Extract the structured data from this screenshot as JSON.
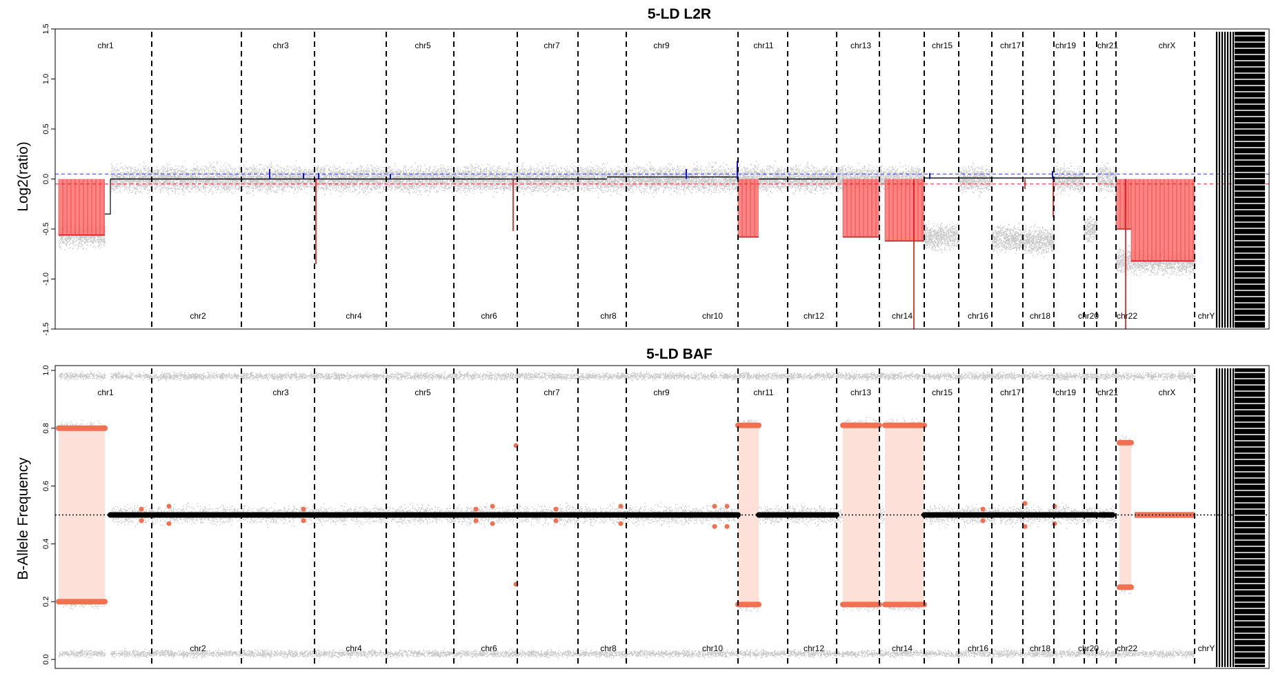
{
  "chart_data": [
    {
      "type": "scatter",
      "title": "5-LD L2R",
      "xlabel": "",
      "ylabel": "Log2(ratio)",
      "ylim": [
        -1.5,
        1.5
      ],
      "yticks": [
        "-1.5",
        "-1.0",
        "-0.5",
        "0.0",
        "0.5",
        "1.0",
        "1.5"
      ],
      "reference_lines": [
        {
          "y": 0.05,
          "color": "#1f3fd0",
          "style": "dashed"
        },
        {
          "y": -0.05,
          "color": "#e02020",
          "style": "dashed"
        },
        {
          "y": 0.0,
          "color": "#000000",
          "style": "dotted"
        }
      ],
      "chromosome_labels_top": [
        "chr1",
        "chr3",
        "chr5",
        "chr7",
        "chr9",
        "chr11",
        "chr13",
        "chr15",
        "chr17",
        "chr19",
        "chr21",
        "chrX"
      ],
      "chromosome_labels_bottom": [
        "chr2",
        "chr4",
        "chr6",
        "chr8",
        "chr10",
        "chr12",
        "chr14",
        "chr16",
        "chr18",
        "chr20",
        "chr22",
        "chrY"
      ],
      "segments": [
        {
          "chr": "chr1",
          "value": -0.55,
          "state": "loss"
        },
        {
          "chr": "chr11",
          "value": -0.58,
          "state": "loss"
        },
        {
          "chr": "chr13",
          "value": -0.58,
          "state": "loss"
        },
        {
          "chr": "chr14",
          "value": -0.62,
          "state": "loss"
        },
        {
          "chr": "chr22",
          "value": -0.5,
          "state": "loss"
        },
        {
          "chr": "chrX",
          "value": -0.82,
          "state": "loss"
        }
      ]
    },
    {
      "type": "scatter",
      "title": "5-LD BAF",
      "xlabel": "",
      "ylabel": "B-Allele Frequency",
      "ylim": [
        0.0,
        1.0
      ],
      "yticks": [
        "0.0",
        "0.2",
        "0.4",
        "0.6",
        "0.8",
        "1.0"
      ],
      "reference_lines": [
        {
          "y": 0.5,
          "color": "#000000",
          "style": "dotted"
        }
      ],
      "chromosome_labels_top": [
        "chr1",
        "chr3",
        "chr5",
        "chr7",
        "chr9",
        "chr11",
        "chr13",
        "chr15",
        "chr17",
        "chr19",
        "chr21",
        "chrX"
      ],
      "chromosome_labels_bottom": [
        "chr2",
        "chr4",
        "chr6",
        "chr8",
        "chr10",
        "chr12",
        "chr14",
        "chr16",
        "chr18",
        "chr20",
        "chr22",
        "chrY"
      ],
      "allelic_imbalance": [
        {
          "chr": "chr1",
          "baf": [
            0.2,
            0.8
          ]
        },
        {
          "chr": "chr11",
          "baf": [
            0.19,
            0.81
          ]
        },
        {
          "chr": "chr13",
          "baf": [
            0.19,
            0.81
          ]
        },
        {
          "chr": "chr14",
          "baf": [
            0.19,
            0.81
          ]
        },
        {
          "chr": "chr22",
          "baf": [
            0.25,
            0.75
          ]
        }
      ]
    }
  ],
  "colors": {
    "points": "#c6c6c6",
    "segment_black": "#000000",
    "loss_fill": "#ff7070",
    "loss_line": "#d81010",
    "gain_line": "#1010ee",
    "baf_marker": "#f07050",
    "baf_fill": "#fde0d8"
  }
}
